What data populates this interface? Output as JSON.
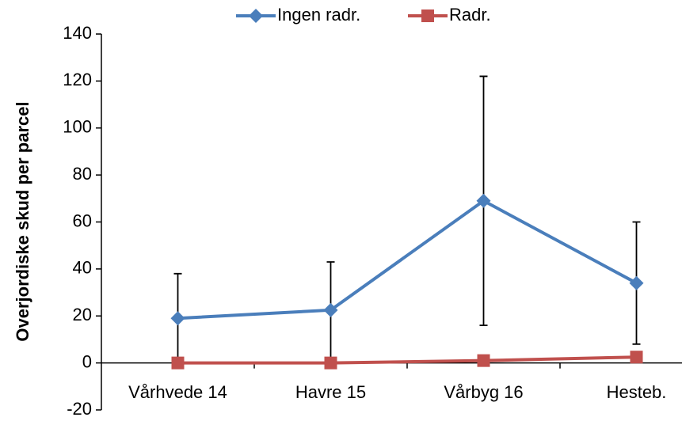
{
  "chart_data": {
    "type": "line",
    "y_label": "Overjordiske skud per parcel",
    "categories": [
      "Vårhvede 14",
      "Havre 15",
      "Vårbyg 16",
      "Hesteb."
    ],
    "series": [
      {
        "name": "Ingen radr.",
        "color": "#4a7ebb",
        "marker": "diamond",
        "values": [
          19,
          22.5,
          69,
          34
        ],
        "errors": [
          19,
          20.5,
          53,
          26
        ]
      },
      {
        "name": "Radr.",
        "color": "#c0504d",
        "marker": "square",
        "values": [
          0,
          0,
          1,
          2.5
        ]
      }
    ],
    "ylim": [
      -20,
      140
    ],
    "yticks": [
      -20,
      0,
      20,
      40,
      60,
      80,
      100,
      120,
      140
    ],
    "legend": "top"
  }
}
